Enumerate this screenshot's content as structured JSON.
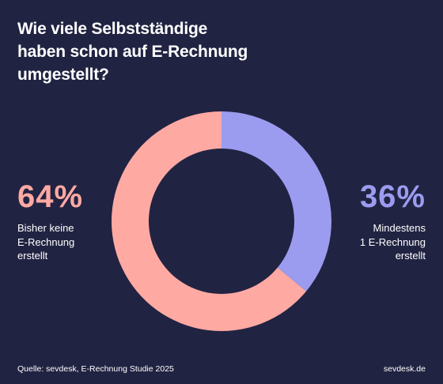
{
  "title_lines": [
    "Wie viele Selbstständige",
    "haben schon auf E-Rechnung",
    "umgestellt?"
  ],
  "left_stat": {
    "percent_label": "64%",
    "description_lines": [
      "Bisher keine",
      "E-Rechnung",
      "erstellt"
    ]
  },
  "right_stat": {
    "percent_label": "36%",
    "description_lines": [
      "Mindestens",
      "1 E-Rechnung",
      "erstellt"
    ]
  },
  "footer": {
    "source": "Quelle: sevdesk, E-Rechnung Studie 2025",
    "brand": "sevdesk.de"
  },
  "colors": {
    "background": "#212342",
    "salmon": "#ffa9a3",
    "periwinkle": "#9b9cf0",
    "text": "#ffffff"
  },
  "chart_data": {
    "type": "pie",
    "style": "donut",
    "start_angle_deg": 0,
    "direction": "clockwise",
    "slices": [
      {
        "label": "Mindestens 1 E-Rechnung erstellt",
        "value": 36,
        "color": "#9b9cf0"
      },
      {
        "label": "Bisher keine E-Rechnung erstellt",
        "value": 64,
        "color": "#ffa9a3"
      }
    ]
  }
}
